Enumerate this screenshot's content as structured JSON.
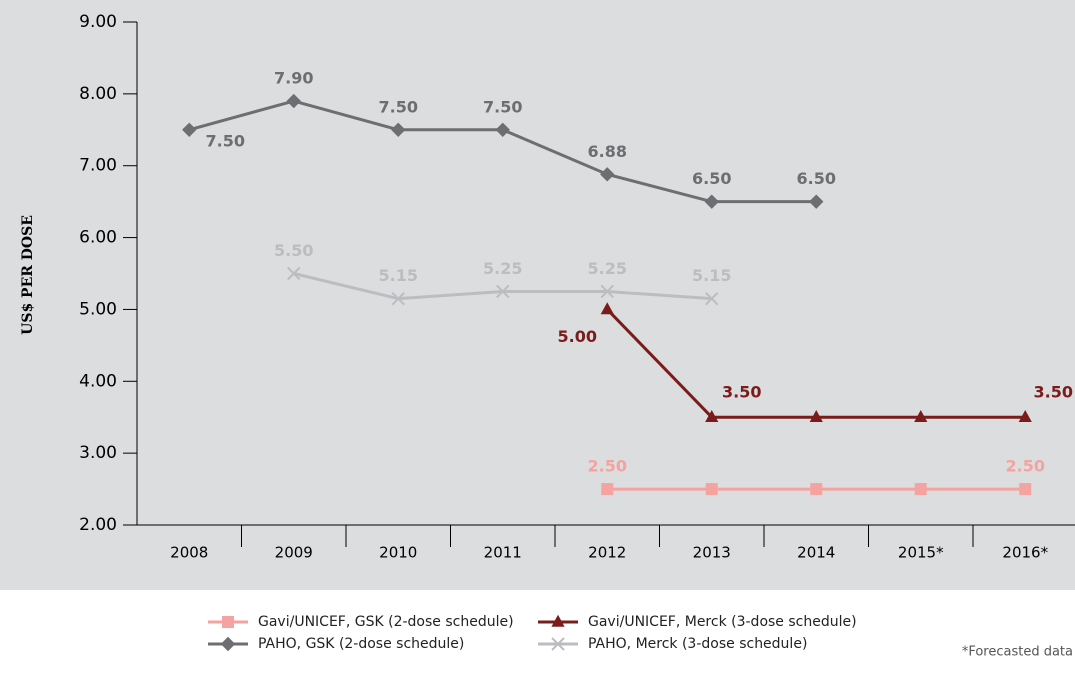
{
  "chart_data": {
    "type": "line",
    "y_label": "US$ PER DOSE",
    "categories": [
      "2008",
      "2009",
      "2010",
      "2011",
      "2012",
      "2013",
      "2014",
      "2015*",
      "2016*"
    ],
    "ylim": [
      2,
      9
    ],
    "yticks": [
      {
        "value": 2,
        "label": "2.00"
      },
      {
        "value": 3,
        "label": "3.00"
      },
      {
        "value": 4,
        "label": "4.00"
      },
      {
        "value": 5,
        "label": "5.00"
      },
      {
        "value": 6,
        "label": "6.00"
      },
      {
        "value": 7,
        "label": "7.00"
      },
      {
        "value": 8,
        "label": "8.00"
      },
      {
        "value": 9,
        "label": "9.00"
      }
    ],
    "series": [
      {
        "name": "Gavi/UNICEF, GSK (2-dose schedule)",
        "color": "#f4a3a0",
        "marker": "square",
        "values": [
          null,
          null,
          null,
          null,
          2.5,
          2.5,
          2.5,
          2.5,
          2.5
        ],
        "value_labels": [
          null,
          null,
          null,
          null,
          "2.50",
          null,
          null,
          null,
          "2.50"
        ]
      },
      {
        "name": "Gavi/UNICEF, Merck (3-dose schedule)",
        "color": "#7b1c1c",
        "marker": "triangle",
        "values": [
          null,
          null,
          null,
          null,
          5,
          3.5,
          3.5,
          3.5,
          3.5
        ],
        "value_labels": [
          null,
          null,
          null,
          null,
          "5.00",
          "3.50",
          null,
          null,
          "3.50"
        ]
      },
      {
        "name": "PAHO, GSK (2-dose schedule)",
        "color": "#6d6e71",
        "marker": "diamond",
        "values": [
          7.5,
          7.9,
          7.5,
          7.5,
          6.88,
          6.5,
          6.5,
          null,
          null
        ],
        "value_labels": [
          "7.50",
          "7.90",
          "7.50",
          "7.50",
          "6.88",
          "6.50",
          "6.50",
          null,
          null
        ]
      },
      {
        "name": "PAHO, Merck (3-dose schedule)",
        "color": "#bcbdc0",
        "marker": "x",
        "values": [
          null,
          5.5,
          5.15,
          5.25,
          5.25,
          5.15,
          null,
          null,
          null
        ],
        "value_labels": [
          null,
          "5.50",
          "5.15",
          "5.25",
          "5.25",
          "5.15",
          null,
          null,
          null
        ]
      }
    ],
    "footnote": "*Forecasted data"
  }
}
